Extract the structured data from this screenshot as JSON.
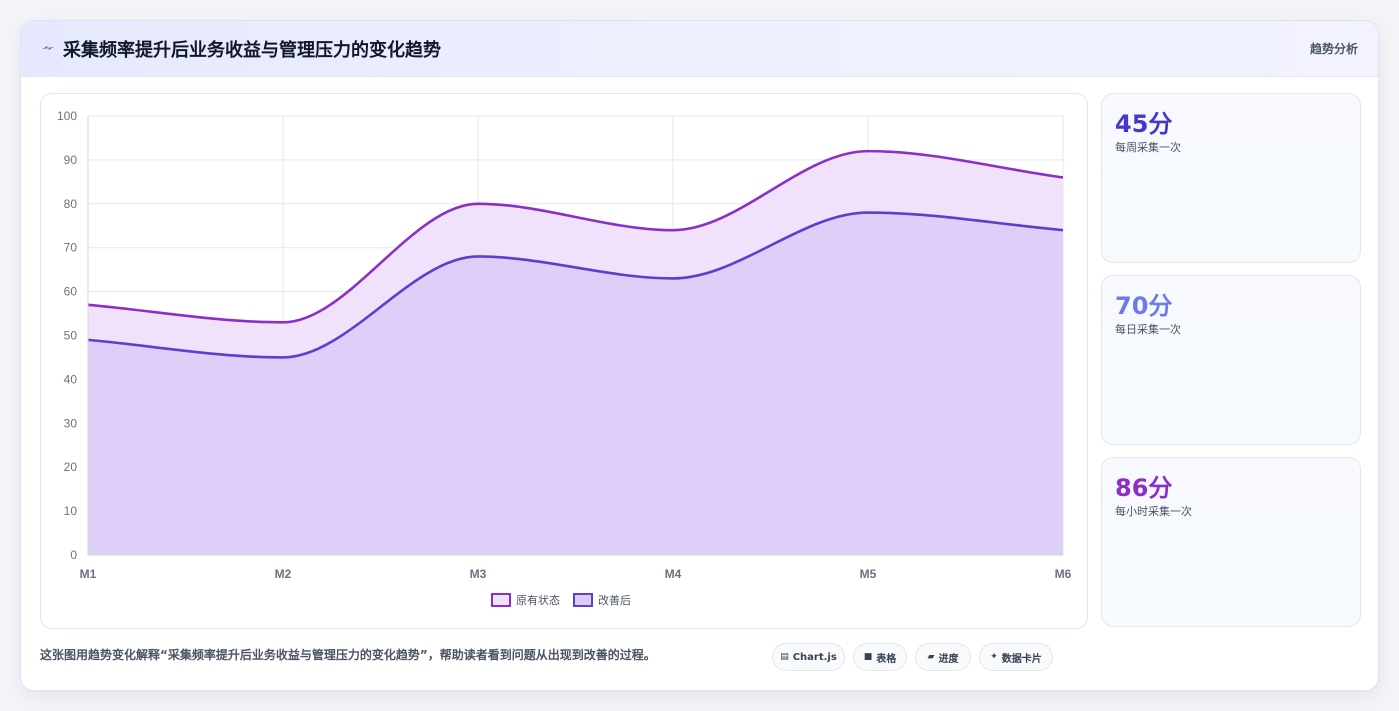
{
  "header": {
    "title": "采集频率提升后业务收益与管理压力的变化趋势",
    "tag": "趋势分析",
    "icon": "lightning-icon"
  },
  "kpis": [
    {
      "value": "45分",
      "label": "每周采集一次",
      "color": "#4338ca"
    },
    {
      "value": "70分",
      "label": "每日采集一次",
      "color": "#6c7be6"
    },
    {
      "value": "86分",
      "label": "每小时采集一次",
      "color": "#8b2fc9"
    }
  ],
  "caption": "这张图用趋势变化解释“采集频率提升后业务收益与管理压力的变化趋势”，帮助读者看到问题从出现到改善的过程。",
  "chips": [
    {
      "icon": "▤",
      "label": "Chart.js"
    },
    {
      "icon": "■",
      "label": "表格"
    },
    {
      "icon": "▰",
      "label": "进度"
    },
    {
      "icon": "✦",
      "label": "数据卡片"
    }
  ],
  "chart_data": {
    "type": "area",
    "categories": [
      "M1",
      "M2",
      "M3",
      "M4",
      "M5",
      "M6"
    ],
    "ylim": [
      0,
      100
    ],
    "yticks": [
      0,
      10,
      20,
      30,
      40,
      50,
      60,
      70,
      80,
      90,
      100
    ],
    "grid": true,
    "legend": "bottom",
    "series": [
      {
        "name": "原有状态",
        "values": [
          57,
          53,
          80,
          74,
          92,
          86
        ],
        "color": "#8b2fc9",
        "fill": "#f0e2fa"
      },
      {
        "name": "改善后",
        "values": [
          49,
          45,
          68,
          63,
          78,
          74
        ],
        "color": "#5a3fd1",
        "fill": "#dccdf8"
      }
    ]
  }
}
